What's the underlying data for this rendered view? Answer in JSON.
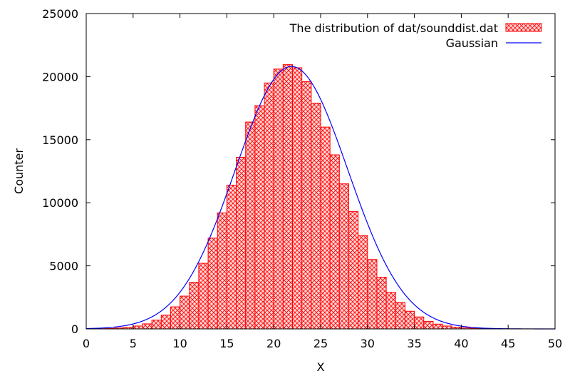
{
  "chart_data": {
    "type": "bar",
    "xlabel": "X",
    "ylabel": "Counter",
    "xlim": [
      0,
      50
    ],
    "ylim": [
      0,
      25000
    ],
    "xticks": [
      0,
      5,
      10,
      15,
      20,
      25,
      30,
      35,
      40,
      45,
      50
    ],
    "yticks": [
      0,
      5000,
      10000,
      15000,
      20000,
      25000
    ],
    "legend_position": "top-right",
    "grid": false,
    "bin_width": 1,
    "series": [
      {
        "name": "The distribution of dat/sounddist.dat",
        "kind": "histogram",
        "color": "#ff0000",
        "fill_pattern": "crosshatch",
        "x": [
          0,
          1,
          2,
          3,
          4,
          5,
          6,
          7,
          8,
          9,
          10,
          11,
          12,
          13,
          14,
          15,
          16,
          17,
          18,
          19,
          20,
          21,
          22,
          23,
          24,
          25,
          26,
          27,
          28,
          29,
          30,
          31,
          32,
          33,
          34,
          35,
          36,
          37,
          38,
          39,
          40,
          41,
          42,
          43,
          44,
          45,
          46,
          47,
          48,
          49
        ],
        "values": [
          5,
          15,
          30,
          70,
          120,
          230,
          400,
          700,
          1100,
          1750,
          2600,
          3700,
          5200,
          7200,
          9200,
          11400,
          13600,
          16400,
          17700,
          19500,
          20600,
          20950,
          20700,
          19600,
          17900,
          16000,
          13800,
          11500,
          9300,
          7400,
          5500,
          4100,
          2900,
          2100,
          1400,
          950,
          600,
          380,
          230,
          140,
          80,
          45,
          25,
          15,
          8,
          5,
          3,
          2,
          1,
          0
        ]
      },
      {
        "name": "Gaussian",
        "kind": "line",
        "color": "#0000ff",
        "mean": 21.9,
        "sigma": 6.0,
        "peak": 20800
      }
    ]
  }
}
